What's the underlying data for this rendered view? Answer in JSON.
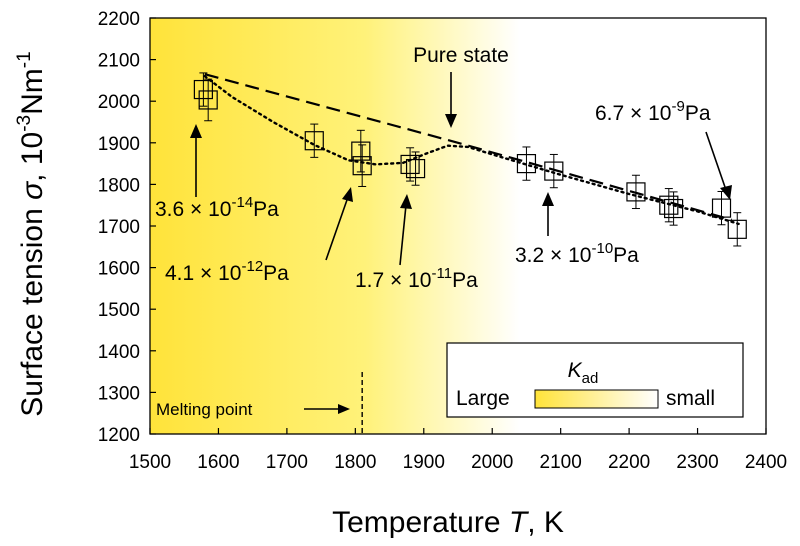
{
  "chart_data": {
    "type": "scatter",
    "xlabel_main": "Temperature ",
    "xlabel_var": "T",
    "xlabel_unit": ", K",
    "ylabel_main": "Surface tension ",
    "ylabel_var": "σ",
    "ylabel_unit": ", 10",
    "ylabel_exp": "-3",
    "ylabel_unit2": "Nm",
    "ylabel_exp2": "-1",
    "xlim": [
      1500,
      2400
    ],
    "ylim": [
      1200,
      2200
    ],
    "x_ticks": [
      "1500",
      "1600",
      "1700",
      "1800",
      "1900",
      "2000",
      "2100",
      "2200",
      "2300",
      "2400"
    ],
    "y_ticks": [
      "1200",
      "1300",
      "1400",
      "1500",
      "1600",
      "1700",
      "1800",
      "1900",
      "2000",
      "2100",
      "2200"
    ],
    "points": [
      {
        "x": 1578,
        "y": 2028,
        "err": 40
      },
      {
        "x": 1585,
        "y": 2003,
        "err": 50
      },
      {
        "x": 1740,
        "y": 1905,
        "err": 40
      },
      {
        "x": 1808,
        "y": 1880,
        "err": 50
      },
      {
        "x": 1810,
        "y": 1845,
        "err": 50
      },
      {
        "x": 1880,
        "y": 1848,
        "err": 40
      },
      {
        "x": 1888,
        "y": 1838,
        "err": 40
      },
      {
        "x": 2050,
        "y": 1850,
        "err": 40
      },
      {
        "x": 2090,
        "y": 1832,
        "err": 40
      },
      {
        "x": 2210,
        "y": 1782,
        "err": 40
      },
      {
        "x": 2258,
        "y": 1750,
        "err": 40
      },
      {
        "x": 2265,
        "y": 1742,
        "err": 40
      },
      {
        "x": 2335,
        "y": 1743,
        "err": 40
      },
      {
        "x": 2358,
        "y": 1692,
        "err": 40
      }
    ],
    "pure_state_line": [
      [
        1580,
        2065
      ],
      [
        1950,
        1900
      ],
      [
        2350,
        1715
      ]
    ],
    "fit_curve": [
      [
        1580,
        2060
      ],
      [
        1620,
        2010
      ],
      [
        1680,
        1950
      ],
      [
        1740,
        1895
      ],
      [
        1790,
        1858
      ],
      [
        1830,
        1848
      ],
      [
        1870,
        1852
      ],
      [
        1905,
        1875
      ],
      [
        1935,
        1893
      ],
      [
        1965,
        1890
      ],
      [
        2000,
        1872
      ],
      [
        2100,
        1823
      ],
      [
        2200,
        1777
      ],
      [
        2300,
        1735
      ],
      [
        2360,
        1705
      ]
    ],
    "annotations": {
      "pure_state": "Pure state",
      "p1_mant": "3.6 × 10",
      "p1_exp": "-14",
      "p1_unit": "Pa",
      "p2_mant": "4.1 × 10",
      "p2_exp": "-12",
      "p2_unit": "Pa",
      "p3_mant": "1.7 × 10",
      "p3_exp": "-11",
      "p3_unit": "Pa",
      "p4_mant": "3.2 × 10",
      "p4_exp": "-10",
      "p4_unit": "Pa",
      "p5_mant": "6.7 × 10",
      "p5_exp": "-9",
      "p5_unit": "Pa",
      "melting_point": "Melting point",
      "melting_point_x": 1810
    },
    "legend": {
      "title_var": "K",
      "title_sub": "ad",
      "left": "Large",
      "right": "small",
      "placement": "bottom-right"
    },
    "background_gradient": {
      "left": "#ffe33a",
      "right": "#ffffff"
    },
    "grid": false
  }
}
